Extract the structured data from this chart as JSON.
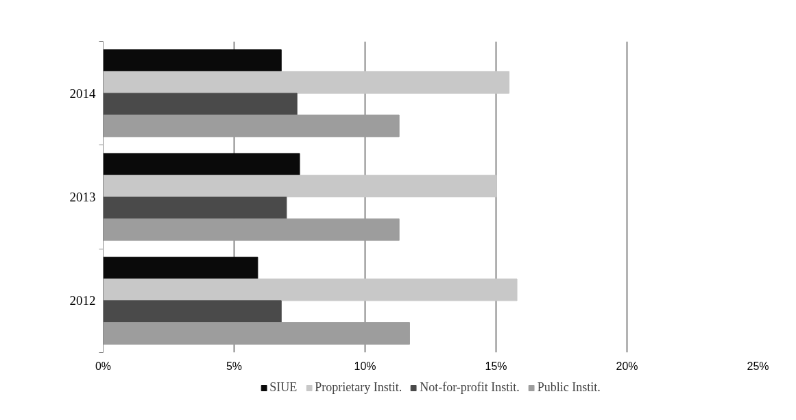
{
  "chart_data": {
    "type": "bar",
    "orientation": "horizontal",
    "categories": [
      "2014",
      "2013",
      "2012"
    ],
    "series": [
      {
        "name": "SIUE",
        "color": "#0a0a0a",
        "values": [
          6.8,
          7.5,
          5.9
        ]
      },
      {
        "name": "Proprietary Instit.",
        "color": "#c8c8c8",
        "values": [
          15.5,
          15.0,
          15.8
        ]
      },
      {
        "name": "Not-for-profit Instit.",
        "color": "#4a4a4a",
        "values": [
          7.4,
          7.0,
          6.8
        ]
      },
      {
        "name": "Public Instit.",
        "color": "#9d9d9d",
        "values": [
          11.3,
          11.3,
          11.7
        ]
      }
    ],
    "xlim": [
      0,
      25
    ],
    "xticks": [
      {
        "value": 0,
        "label": "0%"
      },
      {
        "value": 5,
        "label": "5%"
      },
      {
        "value": 10,
        "label": "10%"
      },
      {
        "value": 15,
        "label": "15%"
      },
      {
        "value": 20,
        "label": "20%"
      },
      {
        "value": 25,
        "label": "25%"
      }
    ],
    "grid": "x",
    "legend": "bottom"
  }
}
